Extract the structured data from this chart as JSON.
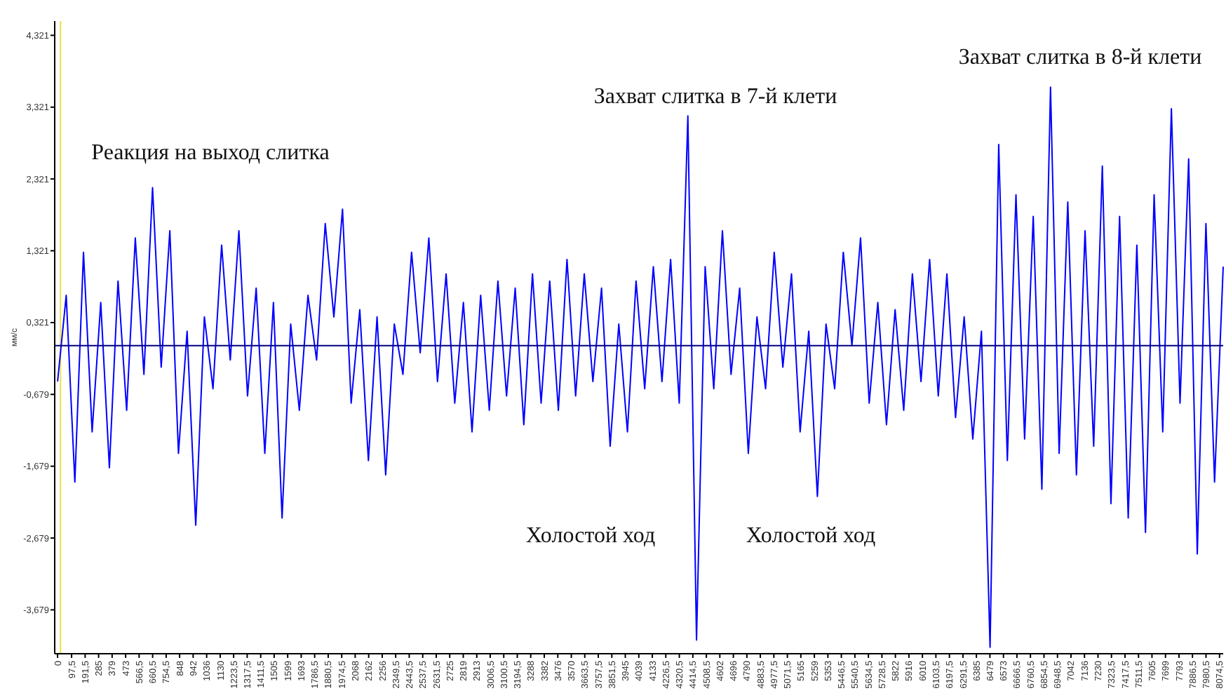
{
  "chart_data": {
    "type": "line",
    "ylabel": "мм/с",
    "x": [
      0,
      60,
      120,
      180,
      240,
      300,
      360,
      420,
      480,
      540,
      600,
      660,
      720,
      780,
      840,
      900,
      960,
      1020,
      1080,
      1140,
      1200,
      1260,
      1320,
      1380,
      1440,
      1500,
      1560,
      1620,
      1680,
      1740,
      1800,
      1860,
      1920,
      1980,
      2040,
      2100,
      2160,
      2220,
      2280,
      2340,
      2400,
      2460,
      2520,
      2580,
      2640,
      2700,
      2760,
      2820,
      2880,
      2940,
      3000,
      3060,
      3120,
      3180,
      3240,
      3300,
      3360,
      3420,
      3480,
      3540,
      3600,
      3660,
      3720,
      3780,
      3840,
      3900,
      3960,
      4020,
      4080,
      4140,
      4200,
      4260,
      4320,
      4380,
      4440,
      4500,
      4560,
      4620,
      4680,
      4740,
      4800,
      4860,
      4920,
      4980,
      5040,
      5100,
      5160,
      5220,
      5280,
      5340,
      5400,
      5460,
      5520,
      5580,
      5640,
      5700,
      5760,
      5820,
      5880,
      5940,
      6000,
      6060,
      6120,
      6180,
      6240,
      6300,
      6360,
      6420,
      6480,
      6540,
      6600,
      6660,
      6720,
      6780,
      6840,
      6900,
      6960,
      7020,
      7080,
      7140,
      7200,
      7260,
      7320,
      7380,
      7440,
      7500,
      7560,
      7620,
      7680,
      7740,
      7800,
      7860,
      7920,
      7980,
      8040,
      8100
    ],
    "series": [
      {
        "color": "#0000ff",
        "values": [
          -0.5,
          0.7,
          -1.9,
          1.3,
          -1.2,
          0.6,
          -1.7,
          0.9,
          -0.9,
          1.5,
          -0.4,
          2.2,
          -0.3,
          1.6,
          -1.5,
          0.2,
          -2.5,
          0.4,
          -0.6,
          1.4,
          -0.2,
          1.6,
          -0.7,
          0.8,
          -1.5,
          0.6,
          -2.4,
          0.3,
          -0.9,
          0.7,
          -0.2,
          1.7,
          0.4,
          1.9,
          -0.8,
          0.5,
          -1.6,
          0.4,
          -1.8,
          0.3,
          -0.4,
          1.3,
          -0.1,
          1.5,
          -0.5,
          1.0,
          -0.8,
          0.6,
          -1.2,
          0.7,
          -0.9,
          0.9,
          -0.7,
          0.8,
          -1.1,
          1.0,
          -0.8,
          0.9,
          -0.9,
          1.2,
          -0.7,
          1.0,
          -0.5,
          0.8,
          -1.4,
          0.3,
          -1.2,
          0.9,
          -0.6,
          1.1,
          -0.5,
          1.2,
          -0.8,
          3.2,
          -4.1,
          1.1,
          -0.6,
          1.6,
          -0.4,
          0.8,
          -1.5,
          0.4,
          -0.6,
          1.3,
          -0.3,
          1.0,
          -1.2,
          0.2,
          -2.1,
          0.3,
          -0.6,
          1.3,
          0.0,
          1.5,
          -0.8,
          0.6,
          -1.1,
          0.5,
          -0.9,
          1.0,
          -0.5,
          1.2,
          -0.7,
          1.0,
          -1.0,
          0.4,
          -1.3,
          0.2,
          -4.2,
          2.8,
          -1.6,
          2.1,
          -1.3,
          1.8,
          -2.0,
          3.6,
          -1.5,
          2.0,
          -1.8,
          1.6,
          -1.4,
          2.5,
          -2.2,
          1.8,
          -2.4,
          1.4,
          -2.6,
          2.1,
          -1.2,
          3.3,
          -0.8,
          2.6,
          -2.9,
          1.7,
          -1.9,
          1.1
        ]
      }
    ],
    "xlim": [
      -20,
      8100
    ],
    "ylim": [
      -4.29,
      4.52
    ],
    "yticks": [
      {
        "value": 4.321,
        "label": "4,321"
      },
      {
        "value": 3.321,
        "label": "3,321"
      },
      {
        "value": 2.321,
        "label": "2,321"
      },
      {
        "value": 1.321,
        "label": "1,321"
      },
      {
        "value": 0.321,
        "label": "0,321"
      },
      {
        "value": -0.679,
        "label": "-0,679"
      },
      {
        "value": -1.679,
        "label": "-1,679"
      },
      {
        "value": -2.679,
        "label": "-2,679"
      },
      {
        "value": -3.679,
        "label": "-3,679"
      }
    ],
    "xticks": [
      0,
      {
        "value": 97.5,
        "label": "97,5"
      },
      {
        "value": 191.5,
        "label": "191,5"
      },
      285,
      379,
      473,
      {
        "value": 566.5,
        "label": "566,5"
      },
      {
        "value": 660.5,
        "label": "660,5"
      },
      {
        "value": 754.5,
        "label": "754,5"
      },
      848,
      942,
      1036,
      1130,
      {
        "value": 1223.5,
        "label": "1223,5"
      },
      {
        "value": 1317.5,
        "label": "1317,5"
      },
      {
        "value": 1411.5,
        "label": "1411,5"
      },
      1505,
      1599,
      1693,
      {
        "value": 1786.5,
        "label": "1786,5"
      },
      {
        "value": 1880.5,
        "label": "1880,5"
      },
      {
        "value": 1974.5,
        "label": "1974,5"
      },
      2068,
      2162,
      2256,
      {
        "value": 2349.5,
        "label": "2349,5"
      },
      {
        "value": 2443.5,
        "label": "2443,5"
      },
      {
        "value": 2537.5,
        "label": "2537,5"
      },
      {
        "value": 2631.5,
        "label": "2631,5"
      },
      2725,
      2819,
      2913,
      {
        "value": 3006.5,
        "label": "3006,5"
      },
      {
        "value": 3100.5,
        "label": "3100,5"
      },
      {
        "value": 3194.5,
        "label": "3194,5"
      },
      3288,
      3382,
      3476,
      3570,
      {
        "value": 3663.5,
        "label": "3663,5"
      },
      {
        "value": 3757.5,
        "label": "3757,5"
      },
      {
        "value": 3851.5,
        "label": "3851,5"
      },
      3945,
      4039,
      4133,
      {
        "value": 4226.5,
        "label": "4226,5"
      },
      {
        "value": 4320.5,
        "label": "4320,5"
      },
      {
        "value": 4414.5,
        "label": "4414,5"
      },
      {
        "value": 4508.5,
        "label": "4508,5"
      },
      4602,
      4696,
      4790,
      {
        "value": 4883.5,
        "label": "4883,5"
      },
      {
        "value": 4977.5,
        "label": "4977,5"
      },
      {
        "value": 5071.5,
        "label": "5071,5"
      },
      5165,
      5259,
      5353,
      {
        "value": 5446.5,
        "label": "5446,5"
      },
      {
        "value": 5540.5,
        "label": "5540,5"
      },
      {
        "value": 5634.5,
        "label": "5634,5"
      },
      {
        "value": 5728.5,
        "label": "5728,5"
      },
      5822,
      5916,
      6010,
      {
        "value": 6103.5,
        "label": "6103,5"
      },
      {
        "value": 6197.5,
        "label": "6197,5"
      },
      {
        "value": 6291.5,
        "label": "6291,5"
      },
      6385,
      6479,
      6573,
      {
        "value": 6666.5,
        "label": "6666,5"
      },
      {
        "value": 6760.5,
        "label": "6760,5"
      },
      {
        "value": 6854.5,
        "label": "6854,5"
      },
      {
        "value": 6948.5,
        "label": "6948,5"
      },
      7042,
      7136,
      7230,
      {
        "value": 7323.5,
        "label": "7323,5"
      },
      {
        "value": 7417.5,
        "label": "7417,5"
      },
      {
        "value": 7511.5,
        "label": "7511,5"
      },
      7605,
      7699,
      7793,
      {
        "value": 7886.5,
        "label": "7886,5"
      },
      {
        "value": 7980.5,
        "label": "7980,5"
      },
      {
        "value": 8074.5,
        "label": "8074,5"
      }
    ],
    "ref_lines": [
      {
        "axis": "y",
        "value": 0,
        "color": "#000080"
      },
      {
        "axis": "x",
        "value": 20,
        "color": "#f0e040"
      }
    ],
    "annotations": [
      "Реакция на выход слитка",
      "Захват слитка в 7-й клети",
      "Захват слитка в 8-й клети",
      "Холостой ход",
      "Холостой ход"
    ]
  }
}
